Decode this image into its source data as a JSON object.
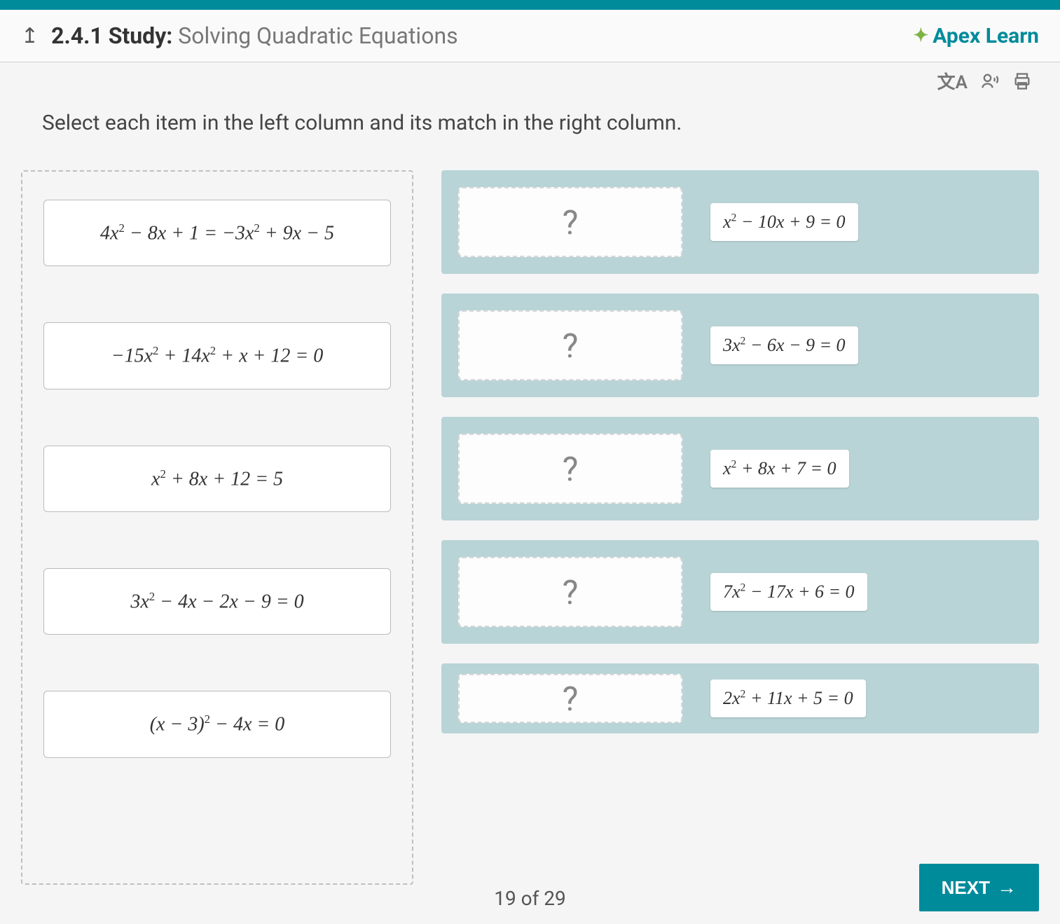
{
  "colors": {
    "brand": "#008b9b",
    "panel": "#b9d4d6",
    "border_dashed": "#bfbfbf",
    "text_muted": "#777",
    "text": "#333"
  },
  "header": {
    "lesson_number": "2.4.1",
    "lesson_type": "Study:",
    "lesson_name": "Solving Quadratic Equations",
    "brand_label": "Apex Learn"
  },
  "toolbar": {
    "translate_label": "文A",
    "read_aloud_label": "Read aloud",
    "print_label": "Print"
  },
  "instruction": "Select each item in the left column and its match in the right column.",
  "left_items": [
    {
      "expr_html": "4<i>x</i><sup>2</sup> − 8<i>x</i> + 1 = −3<i>x</i><sup>2</sup> + 9<i>x</i> − 5"
    },
    {
      "expr_html": "−15<i>x</i><sup>2</sup> + 14<i>x</i><sup>2</sup> + <i>x</i> + 12 = 0"
    },
    {
      "expr_html": "<i>x</i><sup>2</sup> + 8<i>x</i> + 12 = 5"
    },
    {
      "expr_html": "3<i>x</i><sup>2</sup> − 4<i>x</i> − 2<i>x</i> − 9 = 0"
    },
    {
      "expr_html": "(<i>x</i> − 3)<sup>2</sup> − 4<i>x</i> = 0"
    }
  ],
  "right_rows": [
    {
      "drop_placeholder": "?",
      "answer_html": "<i>x</i><sup>2</sup> − 10<i>x</i> + 9 = 0"
    },
    {
      "drop_placeholder": "?",
      "answer_html": "3<i>x</i><sup>2</sup> − 6<i>x</i> − 9 = 0"
    },
    {
      "drop_placeholder": "?",
      "answer_html": "<i>x</i><sup>2</sup> + 8<i>x</i> + 7 = 0"
    },
    {
      "drop_placeholder": "?",
      "answer_html": "7<i>x</i><sup>2</sup> − 17<i>x</i> + 6 = 0"
    },
    {
      "drop_placeholder": "?",
      "answer_html": "2<i>x</i><sup>2</sup> + 11<i>x</i> + 5 = 0"
    }
  ],
  "pager": {
    "current": 19,
    "total": 29,
    "label": "19 of 29"
  },
  "next_label": "NEXT"
}
